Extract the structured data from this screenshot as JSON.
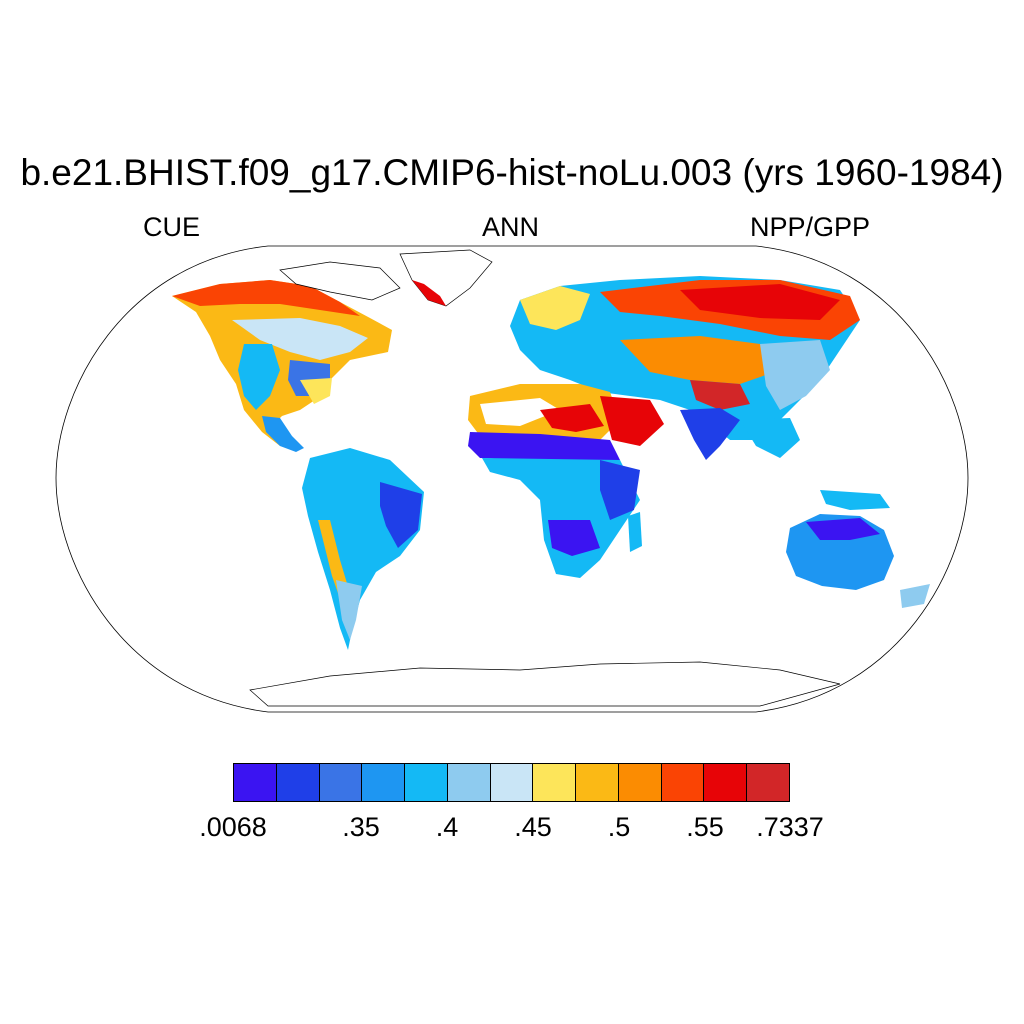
{
  "title": "b.e21.BHIST.f09_g17.CMIP6-hist-noLu.003 (yrs 1960-1984)",
  "subtitle_left": "CUE",
  "subtitle_center": "ANN",
  "subtitle_right": "NPP/GPP",
  "colorbar": {
    "colors": [
      "#3b14f2",
      "#1f3fe8",
      "#3a74e6",
      "#1e96f2",
      "#14b9f5",
      "#8ecbef",
      "#c9e5f6",
      "#fde55a",
      "#fbb915",
      "#fb8c02",
      "#fa4404",
      "#e70407",
      "#d22628"
    ],
    "tick_labels": [
      ".0068",
      ".35",
      ".4",
      ".45",
      ".5",
      ".55",
      ".7337"
    ]
  },
  "colors": {
    "outline": "#000000",
    "background": "#ffffff"
  }
}
